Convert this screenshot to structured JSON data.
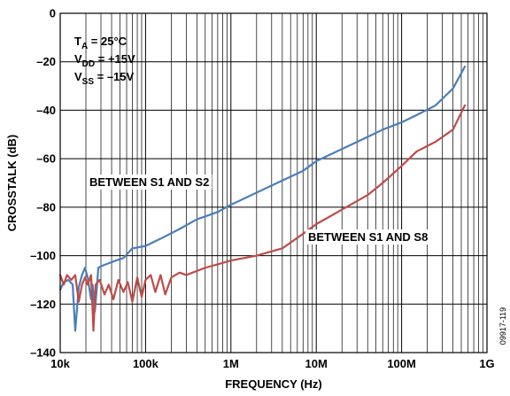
{
  "chart_data": {
    "type": "line",
    "xlabel": "FREQUENCY (Hz)",
    "ylabel": "CROSSTALK (dB)",
    "x_scale": "log",
    "xlim": [
      10000,
      1000000000
    ],
    "ylim": [
      -140,
      0
    ],
    "x_tick_values": [
      10000,
      100000,
      1000000,
      10000000,
      100000000,
      1000000000
    ],
    "x_tick_labels": [
      "10k",
      "100k",
      "1M",
      "10M",
      "100M",
      "1G"
    ],
    "y_tick_values": [
      0,
      -20,
      -40,
      -60,
      -80,
      -100,
      -120,
      -140
    ],
    "y_tick_labels": [
      "0",
      "–20",
      "–40",
      "–60",
      "–80",
      "–100",
      "–120",
      "–140"
    ],
    "grid": true,
    "conditions": [
      {
        "sym": "T",
        "sub": "A",
        "val": " = 25°C"
      },
      {
        "sym": "V",
        "sub": "DD",
        "val": " = +15V"
      },
      {
        "sym": "V",
        "sub": "SS",
        "val": " = –15V"
      }
    ],
    "figure_code": "09917-119",
    "series": [
      {
        "name": "BETWEEN S1 AND S2",
        "color": "#4a7ebb",
        "x": [
          10000,
          11000,
          12500,
          14000,
          15000,
          16500,
          18000,
          19500,
          21000,
          23000,
          24000,
          25500,
          28000,
          32000,
          38000,
          45000,
          55000,
          70000,
          100000,
          150000,
          250000,
          400000,
          700000,
          1000000,
          2000000,
          4000000,
          7000000,
          10000000,
          20000000,
          40000000,
          60000000,
          100000000,
          150000000,
          250000000,
          400000000,
          550000000
        ],
        "y": [
          -114,
          -111,
          -110,
          -112,
          -131,
          -113,
          -108,
          -105,
          -109,
          -118,
          -112,
          -123,
          -105,
          -104,
          -103,
          -102,
          -101,
          -97,
          -96,
          -93,
          -89,
          -85,
          -82,
          -79,
          -74,
          -69,
          -65,
          -61,
          -56,
          -51,
          -48,
          -45,
          -42,
          -38,
          -31,
          -22
        ]
      },
      {
        "name": "BETWEEN S1 AND S8",
        "color": "#be4b48",
        "x": [
          10000,
          11000,
          12000,
          13500,
          15000,
          16500,
          18000,
          19500,
          21000,
          23000,
          24500,
          26000,
          29000,
          33000,
          37000,
          42000,
          48000,
          55000,
          62000,
          70000,
          80000,
          90000,
          100000,
          115000,
          130000,
          150000,
          170000,
          200000,
          250000,
          300000,
          500000,
          800000,
          1000000,
          2000000,
          4000000,
          7000000,
          10000000,
          20000000,
          40000000,
          60000000,
          100000000,
          150000000,
          250000000,
          400000000,
          550000000
        ],
        "y": [
          -108,
          -112,
          -108,
          -110,
          -108,
          -119,
          -112,
          -109,
          -112,
          -108,
          -131,
          -112,
          -110,
          -116,
          -112,
          -118,
          -110,
          -115,
          -111,
          -119,
          -109,
          -117,
          -110,
          -108,
          -115,
          -108,
          -116,
          -109,
          -107,
          -108,
          -105,
          -103,
          -102,
          -100,
          -97,
          -91,
          -87,
          -81,
          -75,
          -70,
          -63,
          -57,
          -53,
          -48,
          -38
        ]
      }
    ]
  },
  "labels": {
    "s2_label": "BETWEEN S1 AND S2",
    "s8_label": "BETWEEN S1 AND S8"
  }
}
